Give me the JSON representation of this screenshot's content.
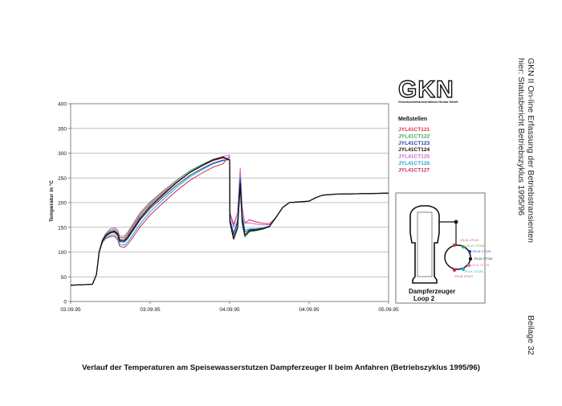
{
  "document": {
    "side_title_line1": "GKN II    On-line Erfassung der Betriebstransienten",
    "side_title_line2": "hier: Statusbericht Betriebszyklus 1995/96",
    "side_footer": "Beilage 32",
    "caption": "Verlauf der Temperaturen am Speisewasserstutzen Dampferzeuger II beim Anfahren (Betriebszyklus 1995/96)"
  },
  "logo": {
    "text": "GKN",
    "subtitle": "Gemeinschaftskernkraftwerk Neckar GmbH"
  },
  "legend": {
    "title": "Meßstellen",
    "items": [
      {
        "label": "JYL41CT121",
        "color": "#d8343c"
      },
      {
        "label": "JYL41CT122",
        "color": "#3aa65a"
      },
      {
        "label": "JYL41CT123",
        "color": "#2a3a9c"
      },
      {
        "label": "JYL41CT124",
        "color": "#111111"
      },
      {
        "label": "JYL41CT125",
        "color": "#d466c8"
      },
      {
        "label": "JYL41CT126",
        "color": "#29a6c9"
      },
      {
        "label": "JYL41CT127",
        "color": "#c8285a"
      }
    ]
  },
  "schematic": {
    "title_line1": "Dampferzeuger",
    "title_line2": "Loop 2",
    "labels": [
      "JYL41 CT121",
      "JYL41 CT122",
      "JYL41 CT123",
      "JYL41 CT124",
      "JYL41 CT125",
      "JYL41 CT126",
      "JYL41 CT127"
    ],
    "colors": [
      "#d8343c",
      "#3aa65a",
      "#2a3a9c",
      "#111111",
      "#d466c8",
      "#29a6c9",
      "#c8285a"
    ]
  },
  "chart_data": {
    "type": "line",
    "ylabel": "Temperatur in °C",
    "ylim": [
      0,
      400
    ],
    "yticks": [
      0,
      50,
      100,
      150,
      200,
      250,
      300,
      350,
      400
    ],
    "xlim": [
      0,
      48
    ],
    "xticks": [
      0,
      12,
      24,
      36,
      48
    ],
    "xtick_labels": [
      "03.09.95",
      "03.09.95",
      "04.09.95",
      "04.09.95",
      "05.09.95"
    ],
    "grid": true,
    "base_series": [
      [
        0,
        33
      ],
      [
        2,
        34
      ],
      [
        3.3,
        35
      ],
      [
        3.9,
        55
      ],
      [
        4.3,
        100
      ],
      [
        4.8,
        122
      ],
      [
        5.3,
        132
      ],
      [
        6,
        138
      ],
      [
        6.6,
        140
      ],
      [
        7.1,
        134
      ],
      [
        7.4,
        121
      ],
      [
        8.1,
        120
      ],
      [
        8.6,
        127
      ],
      [
        9.5,
        145
      ],
      [
        10.5,
        165
      ],
      [
        12,
        188
      ],
      [
        14,
        212
      ],
      [
        16,
        235
      ],
      [
        18,
        255
      ],
      [
        20,
        270
      ],
      [
        21.5,
        280
      ],
      [
        23,
        286
      ],
      [
        24,
        287
      ],
      [
        24.05,
        165
      ],
      [
        24.6,
        135
      ],
      [
        25.2,
        160
      ],
      [
        25.6,
        248
      ],
      [
        25.9,
        170
      ],
      [
        26.3,
        140
      ],
      [
        27,
        145
      ],
      [
        28,
        146
      ],
      [
        29,
        148
      ],
      [
        30,
        152
      ],
      [
        31,
        170
      ],
      [
        32,
        190
      ],
      [
        33,
        200
      ],
      [
        35,
        202
      ],
      [
        36,
        203
      ],
      [
        37,
        210
      ],
      [
        38,
        215
      ],
      [
        40,
        217
      ],
      [
        44,
        218
      ],
      [
        48,
        219
      ]
    ],
    "series": [
      {
        "offsets": [
          [
            0,
            0
          ],
          [
            4,
            0
          ],
          [
            6,
            3
          ],
          [
            10,
            8
          ],
          [
            18,
            6
          ],
          [
            23.9,
            4
          ],
          [
            24.1,
            -4
          ],
          [
            25.6,
            -12
          ],
          [
            27,
            -1
          ],
          [
            31,
            0
          ],
          [
            48,
            0
          ]
        ]
      },
      {
        "offsets": [
          [
            0,
            0
          ],
          [
            4,
            0
          ],
          [
            6,
            6
          ],
          [
            10,
            12
          ],
          [
            18,
            9
          ],
          [
            23.9,
            6
          ],
          [
            24.1,
            -6
          ],
          [
            25.6,
            -16
          ],
          [
            27,
            -4
          ],
          [
            31,
            0
          ],
          [
            48,
            0
          ]
        ]
      },
      {
        "offsets": [
          [
            0,
            0
          ],
          [
            4,
            0
          ],
          [
            6,
            0
          ],
          [
            10,
            0
          ],
          [
            18,
            0
          ],
          [
            23.9,
            0
          ],
          [
            24.1,
            0
          ],
          [
            25.6,
            0
          ],
          [
            27,
            0
          ],
          [
            31,
            0
          ],
          [
            48,
            0
          ]
        ]
      },
      {
        "offsets": [
          [
            0,
            0
          ],
          [
            4,
            0
          ],
          [
            6,
            2
          ],
          [
            10,
            3
          ],
          [
            18,
            6
          ],
          [
            23.9,
            6
          ],
          [
            24.1,
            -8
          ],
          [
            25.6,
            -10
          ],
          [
            27,
            -2
          ],
          [
            31,
            0
          ],
          [
            48,
            0
          ]
        ]
      },
      {
        "offsets": [
          [
            0,
            0
          ],
          [
            4,
            0
          ],
          [
            6,
            9
          ],
          [
            10,
            15
          ],
          [
            18,
            9
          ],
          [
            23.9,
            7
          ],
          [
            24.1,
            12
          ],
          [
            25.6,
            22
          ],
          [
            27,
            14
          ],
          [
            31,
            0
          ],
          [
            48,
            0
          ]
        ]
      },
      {
        "offsets": [
          [
            0,
            0
          ],
          [
            4,
            0
          ],
          [
            6,
            -4
          ],
          [
            10,
            -8
          ],
          [
            18,
            -3
          ],
          [
            23.9,
            -1
          ],
          [
            24.1,
            3
          ],
          [
            25.6,
            6
          ],
          [
            27,
            2
          ],
          [
            31,
            0
          ],
          [
            48,
            0
          ]
        ]
      },
      {
        "offsets": [
          [
            0,
            0
          ],
          [
            4,
            0
          ],
          [
            6,
            -7
          ],
          [
            10,
            -14
          ],
          [
            18,
            -10
          ],
          [
            23.9,
            -7
          ],
          [
            24.1,
            22
          ],
          [
            25.6,
            18
          ],
          [
            27,
            20
          ],
          [
            31,
            0
          ],
          [
            48,
            0
          ]
        ]
      }
    ]
  }
}
